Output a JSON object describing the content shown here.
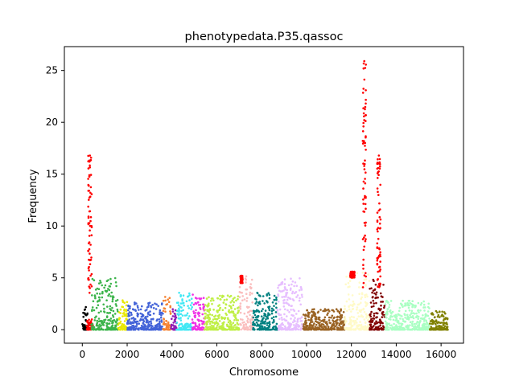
{
  "chart_data": {
    "type": "scatter",
    "title": "phenotypedata.P35.qassoc",
    "xlabel": "Chromosome",
    "ylabel": "Frequency",
    "xlim": [
      -800,
      17000
    ],
    "ylim": [
      -1.3,
      27.3
    ],
    "x_ticks": [
      0,
      2000,
      4000,
      6000,
      8000,
      10000,
      12000,
      14000,
      16000
    ],
    "y_ticks": [
      0,
      5,
      10,
      15,
      20,
      25
    ],
    "grid": false,
    "legend": "none",
    "point_color_default": "#808000",
    "series": [
      {
        "color": "#000000",
        "x_range": [
          0,
          250
        ],
        "base_max": 2.2
      },
      {
        "color": "#ff0000",
        "x_range": [
          200,
          480
        ],
        "base_max": 1.0
      },
      {
        "color": "#3cb44b",
        "x_range": [
          400,
          1600
        ],
        "base_max": 5.0
      },
      {
        "color": "#e8e800",
        "x_range": [
          1600,
          2000
        ],
        "base_max": 2.9
      },
      {
        "color": "#4363d8",
        "x_range": [
          2000,
          3600
        ],
        "base_max": 2.8
      },
      {
        "color": "#f58231",
        "x_range": [
          3600,
          3950
        ],
        "base_max": 3.2
      },
      {
        "color": "#911eb4",
        "x_range": [
          3950,
          4200
        ],
        "base_max": 2.5
      },
      {
        "color": "#42e8f4",
        "x_range": [
          4200,
          4900
        ],
        "base_max": 3.6
      },
      {
        "color": "#f032e6",
        "x_range": [
          4900,
          5450
        ],
        "base_max": 3.5
      },
      {
        "color": "#bfef45",
        "x_range": [
          5450,
          7000
        ],
        "base_max": 3.3
      },
      {
        "color": "#fabebe",
        "x_range": [
          7000,
          7600
        ],
        "base_max": 5.2
      },
      {
        "color": "#008080",
        "x_range": [
          7600,
          8700
        ],
        "base_max": 3.6
      },
      {
        "color": "#e6beff",
        "x_range": [
          8700,
          9850
        ],
        "base_max": 5.0
      },
      {
        "color": "#9a6324",
        "x_range": [
          9850,
          11700
        ],
        "base_max": 2.0
      },
      {
        "color": "#fffac8",
        "x_range": [
          11700,
          12800
        ],
        "base_max": 5.5
      },
      {
        "color": "#800000",
        "x_range": [
          12800,
          13500
        ],
        "base_max": 5.0
      },
      {
        "color": "#aaffc3",
        "x_range": [
          13500,
          15500
        ],
        "base_max": 2.8
      },
      {
        "color": "#808000",
        "x_range": [
          15500,
          16300
        ],
        "base_max": 1.8
      }
    ],
    "peaks": [
      {
        "color": "#ff0000",
        "x_range": [
          260,
          420
        ],
        "y_min": 3.5,
        "y_max": 16.8
      },
      {
        "color": "#ff0000",
        "x_range": [
          11950,
          12150
        ],
        "y_min": 5.0,
        "y_max": 5.6
      },
      {
        "color": "#ff0000",
        "x_range": [
          12500,
          12650
        ],
        "y_min": 4.0,
        "y_max": 25.9
      },
      {
        "color": "#ff0000",
        "x_range": [
          13150,
          13300
        ],
        "y_min": 4.0,
        "y_max": 16.8
      },
      {
        "color": "#ff0000",
        "x_range": [
          7050,
          7150
        ],
        "y_min": 4.5,
        "y_max": 5.2
      }
    ]
  }
}
